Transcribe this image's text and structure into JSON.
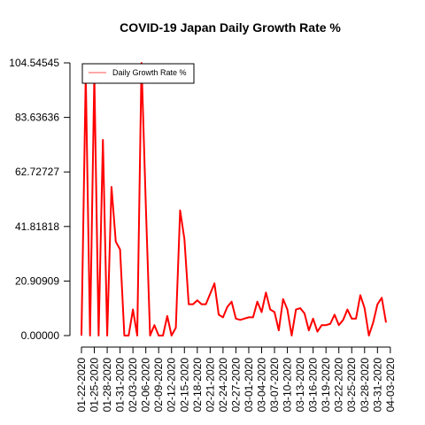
{
  "chart_data": {
    "type": "line",
    "title": "COVID-19 Japan Daily Growth Rate %",
    "xlabel": "",
    "ylabel": "",
    "legend": {
      "position": "top-left",
      "entries": [
        "Daily Growth Rate %"
      ]
    },
    "grid": false,
    "ylim": [
      0,
      104.54545
    ],
    "y_ticks": [
      "0.00000",
      "20.90909",
      "41.81818",
      "62.72727",
      "83.63636",
      "104.54545"
    ],
    "y_tick_values": [
      0,
      20.90909,
      41.81818,
      62.72727,
      83.63636,
      104.54545
    ],
    "x_ticks": [
      "01-22-2020",
      "01-25-2020",
      "01-28-2020",
      "01-31-2020",
      "02-03-2020",
      "02-06-2020",
      "02-09-2020",
      "02-12-2020",
      "02-15-2020",
      "02-18-2020",
      "02-21-2020",
      "02-24-2020",
      "02-27-2020",
      "03-01-2020",
      "03-04-2020",
      "03-07-2020",
      "03-10-2020",
      "03-13-2020",
      "03-16-2020",
      "03-19-2020",
      "03-22-2020",
      "03-25-2020",
      "03-28-2020",
      "03-31-2020",
      "04-03-2020"
    ],
    "x_start": "01-22-2020",
    "series": [
      {
        "name": "Daily Growth Rate %",
        "color": "#ff0000",
        "values": [
          0,
          100,
          0,
          100,
          0,
          75,
          0,
          57,
          36,
          33,
          0,
          0,
          10,
          0,
          104.5,
          50,
          0,
          4,
          0,
          0,
          7.5,
          0,
          3,
          48,
          37,
          12,
          12,
          13.5,
          12,
          12,
          16,
          20,
          8,
          7,
          11,
          13,
          6.5,
          6,
          6.5,
          7,
          7,
          13,
          9,
          16.5,
          10,
          9,
          2,
          14,
          10,
          0,
          10,
          10.5,
          8.5,
          2,
          6.5,
          1.5,
          4,
          4,
          4.5,
          8,
          4,
          6,
          10,
          6.5,
          6.5,
          15.5,
          10.5,
          0,
          5,
          12,
          14.5,
          5
        ]
      }
    ]
  }
}
